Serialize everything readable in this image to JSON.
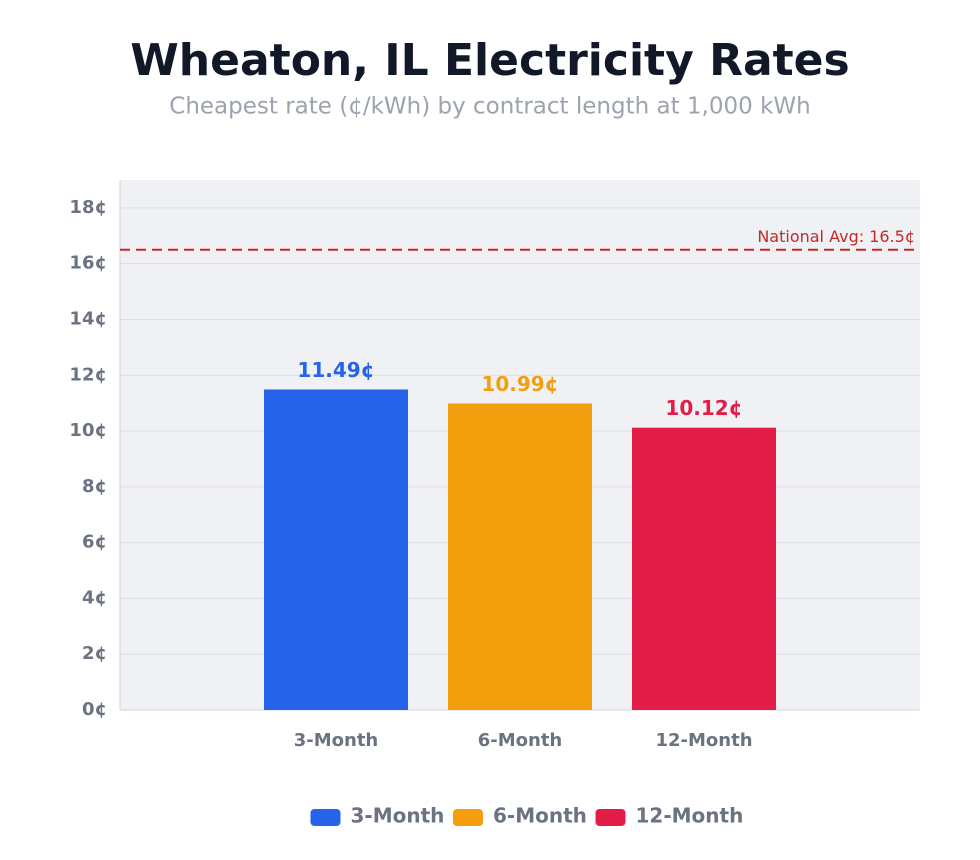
{
  "chart_data": {
    "type": "bar",
    "title": "Wheaton, IL Electricity Rates",
    "subtitle": "Cheapest rate (¢/kWh) by contract length at 1,000 kWh",
    "categories": [
      "3-Month",
      "6-Month",
      "12-Month"
    ],
    "values": [
      11.49,
      10.99,
      10.12
    ],
    "value_labels": [
      "11.49¢",
      "10.99¢",
      "10.12¢"
    ],
    "colors": [
      "#2563eb",
      "#f39e0c",
      "#e11d48"
    ],
    "ylim": [
      0,
      19
    ],
    "yticks": [
      {
        "value": 0,
        "label": "0¢"
      },
      {
        "value": 2,
        "label": "2¢"
      },
      {
        "value": 4,
        "label": "4¢"
      },
      {
        "value": 6,
        "label": "6¢"
      },
      {
        "value": 8,
        "label": "8¢"
      },
      {
        "value": 10,
        "label": "10¢"
      },
      {
        "value": 12,
        "label": "12¢"
      },
      {
        "value": 14,
        "label": "14¢"
      },
      {
        "value": 16,
        "label": "16¢"
      },
      {
        "value": 18,
        "label": "18¢"
      }
    ],
    "grid": true,
    "reference_line": {
      "value": 16.5,
      "label": "National Avg: 16.5¢",
      "color": "#c62828"
    },
    "legend": "bottom"
  }
}
